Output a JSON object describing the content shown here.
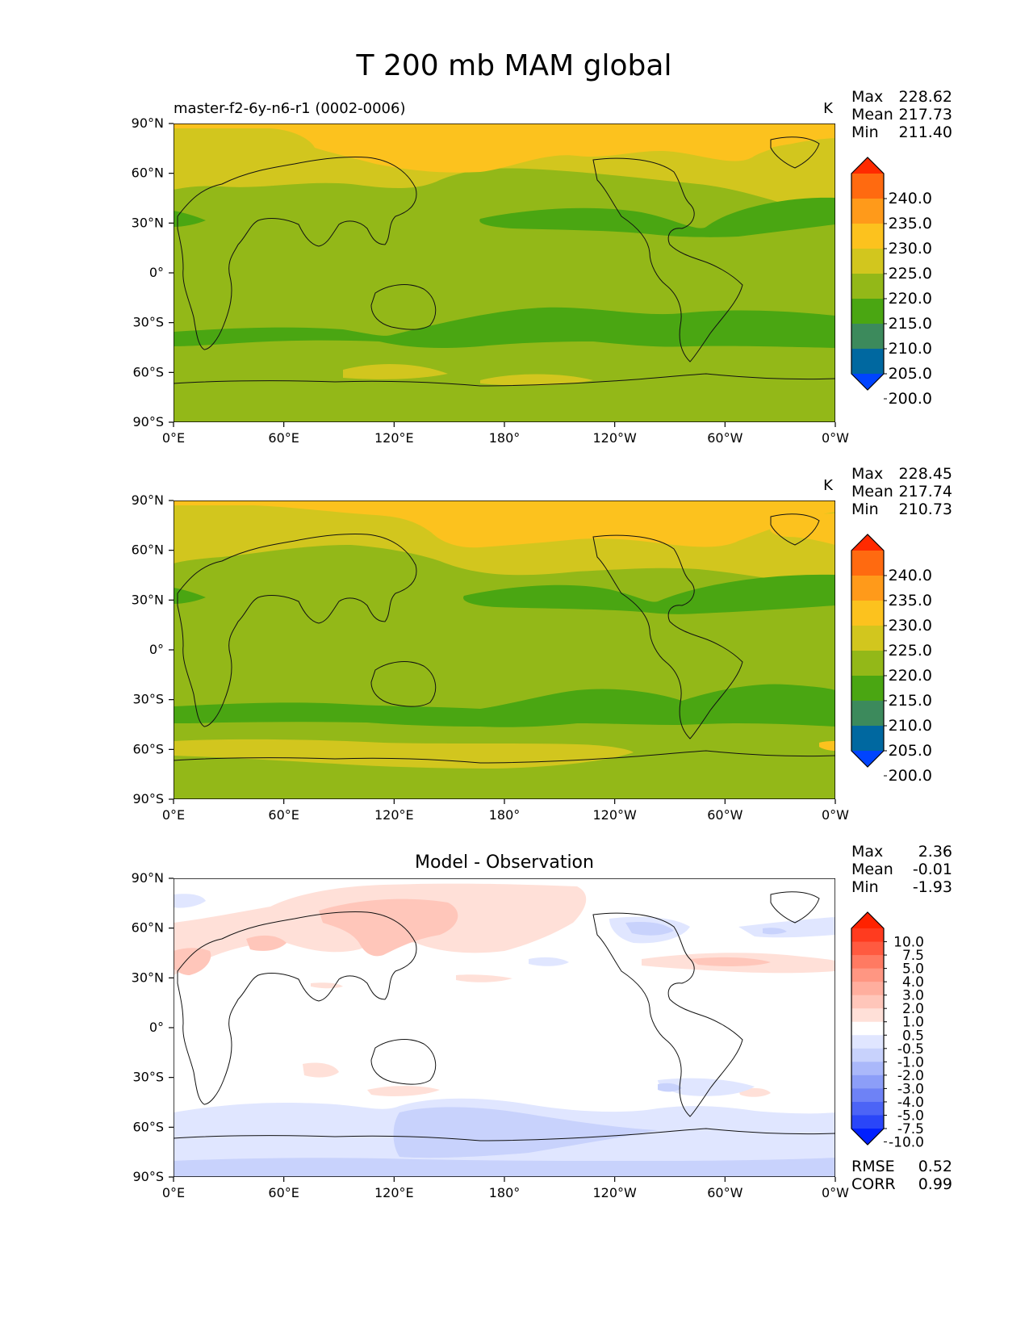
{
  "title": "T 200 mb MAM global",
  "lon_ticks": [
    "0°E",
    "60°E",
    "120°E",
    "180°",
    "120°W",
    "60°W",
    "0°W"
  ],
  "lat_ticks": [
    "90°N",
    "60°N",
    "30°N",
    "0°",
    "30°S",
    "60°S",
    "90°S"
  ],
  "panels": [
    {
      "name": "model",
      "title_left": "master-f2-6y-n6-r1 (0002-0006)",
      "title_center": "",
      "units": "K",
      "stats": [
        {
          "label": "Max",
          "value": "228.62"
        },
        {
          "label": "Mean",
          "value": "217.73"
        },
        {
          "label": "Min",
          "value": "211.40"
        }
      ],
      "colorbar": {
        "labels": [
          "240.0",
          "235.0",
          "230.0",
          "225.0",
          "220.0",
          "215.0",
          "210.0",
          "205.0",
          "200.0"
        ],
        "colors": [
          "#ff2a00",
          "#ff6a10",
          "#ff9a1a",
          "#fcc21e",
          "#d2c61e",
          "#93b818",
          "#4aa612",
          "#3c8a5c",
          "#0068a0",
          "#0044ff"
        ]
      },
      "footer": []
    },
    {
      "name": "observation",
      "title_left": "",
      "title_center": "",
      "units": "K",
      "stats": [
        {
          "label": "Max",
          "value": "228.45"
        },
        {
          "label": "Mean",
          "value": "217.74"
        },
        {
          "label": "Min",
          "value": "210.73"
        }
      ],
      "colorbar": {
        "labels": [
          "240.0",
          "235.0",
          "230.0",
          "225.0",
          "220.0",
          "215.0",
          "210.0",
          "205.0",
          "200.0"
        ],
        "colors": [
          "#ff2a00",
          "#ff6a10",
          "#ff9a1a",
          "#fcc21e",
          "#d2c61e",
          "#93b818",
          "#4aa612",
          "#3c8a5c",
          "#0068a0",
          "#0044ff"
        ]
      },
      "footer": []
    },
    {
      "name": "difference",
      "title_left": "",
      "title_center": "Model - Observation",
      "units": "",
      "stats": [
        {
          "label": "Max",
          "value": "2.36"
        },
        {
          "label": "Mean",
          "value": "-0.01"
        },
        {
          "label": "Min",
          "value": "-1.93"
        }
      ],
      "colorbar": {
        "labels": [
          "10.0",
          "7.5",
          "5.0",
          "4.0",
          "3.0",
          "2.0",
          "1.0",
          "0.5",
          "-0.5",
          "-1.0",
          "-2.0",
          "-3.0",
          "-4.0",
          "-5.0",
          "-7.5",
          "-10.0"
        ],
        "colors": [
          "#ff2200",
          "#ff3b1f",
          "#ff5a40",
          "#ff7a62",
          "#ff9682",
          "#ffae9e",
          "#ffc6ba",
          "#ffe0d8",
          "#ffffff",
          "#e0e6ff",
          "#c8d2fc",
          "#aab8fa",
          "#8c9ef8",
          "#6e82f6",
          "#4c64f6",
          "#2a46f8",
          "#0020ff"
        ]
      },
      "footer": [
        {
          "label": "RMSE",
          "value": "0.52"
        },
        {
          "label": "CORR",
          "value": "0.99"
        }
      ]
    }
  ]
}
